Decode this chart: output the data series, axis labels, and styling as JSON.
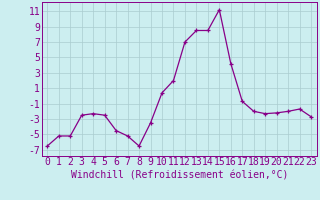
{
  "x": [
    0,
    1,
    2,
    3,
    4,
    5,
    6,
    7,
    8,
    9,
    10,
    11,
    12,
    13,
    14,
    15,
    16,
    17,
    18,
    19,
    20,
    21,
    22,
    23
  ],
  "y": [
    -6.5,
    -5.2,
    -5.2,
    -2.5,
    -2.3,
    -2.5,
    -4.5,
    -5.2,
    -6.5,
    -3.5,
    0.4,
    2.0,
    7.0,
    8.5,
    8.5,
    11.2,
    4.2,
    -0.7,
    -2.0,
    -2.3,
    -2.2,
    -2.0,
    -1.7,
    -2.7
  ],
  "line_color": "#880088",
  "marker": "+",
  "bg_color": "#cceef0",
  "grid_color": "#aaccd0",
  "xlabel": "Windchill (Refroidissement éolien,°C)",
  "yticks": [
    -7,
    -5,
    -3,
    -1,
    1,
    3,
    5,
    7,
    9,
    11
  ],
  "ylim": [
    -7.8,
    12.2
  ],
  "xlim": [
    -0.5,
    23.5
  ],
  "tick_fontsize": 7,
  "label_fontsize": 7
}
